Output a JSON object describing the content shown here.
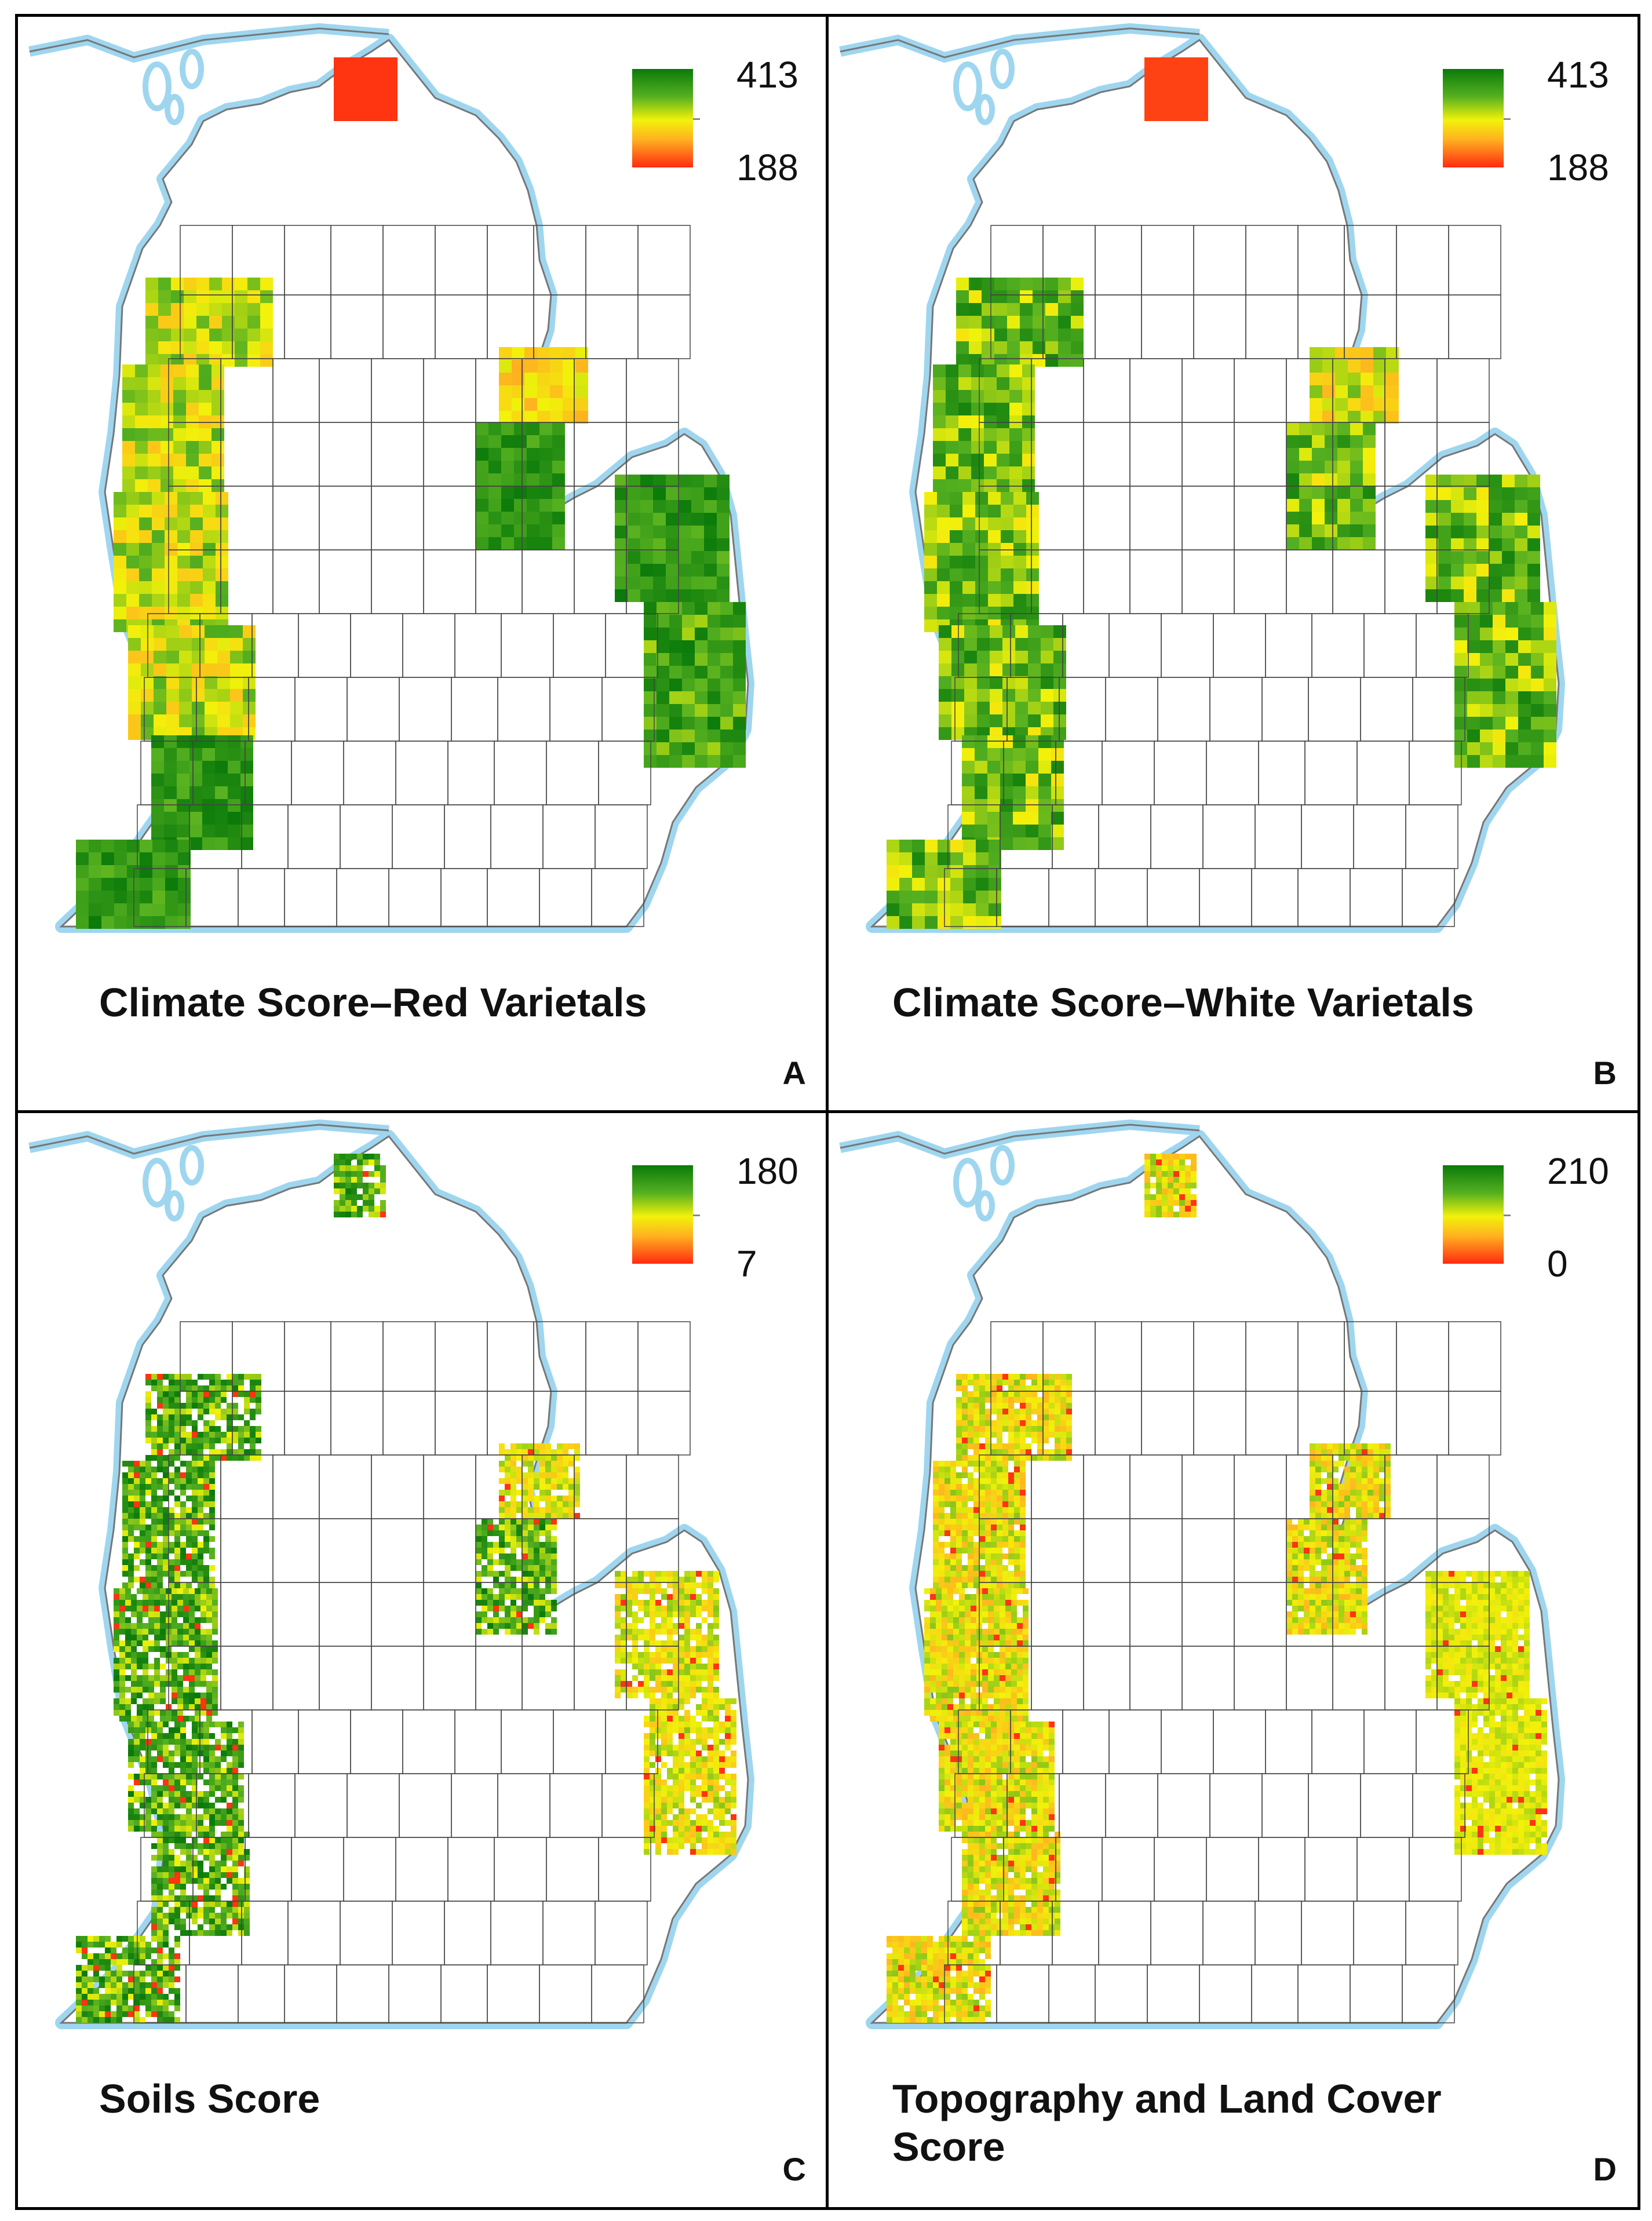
{
  "panels": [
    {
      "title": "Climate Score–Red Varietals",
      "letter": "A",
      "legend_max": "413",
      "legend_min": "188",
      "pattern": "climate-red"
    },
    {
      "title": "Climate Score–White Varietals",
      "letter": "B",
      "legend_max": "413",
      "legend_min": "188",
      "pattern": "climate-white"
    },
    {
      "title": "Soils Score",
      "letter": "C",
      "legend_max": "180",
      "legend_min": "7",
      "pattern": "soils"
    },
    {
      "title": "Topography and Land Cover Score",
      "letter": "D",
      "legend_max": "210",
      "legend_min": "0",
      "pattern": "topo"
    }
  ],
  "colors": {
    "water_outline": "#9fd6ef",
    "county_line": "#444444",
    "score_high": "#0a7a0a",
    "score_mid": "#f2f20a",
    "score_low": "#ff2a10"
  }
}
